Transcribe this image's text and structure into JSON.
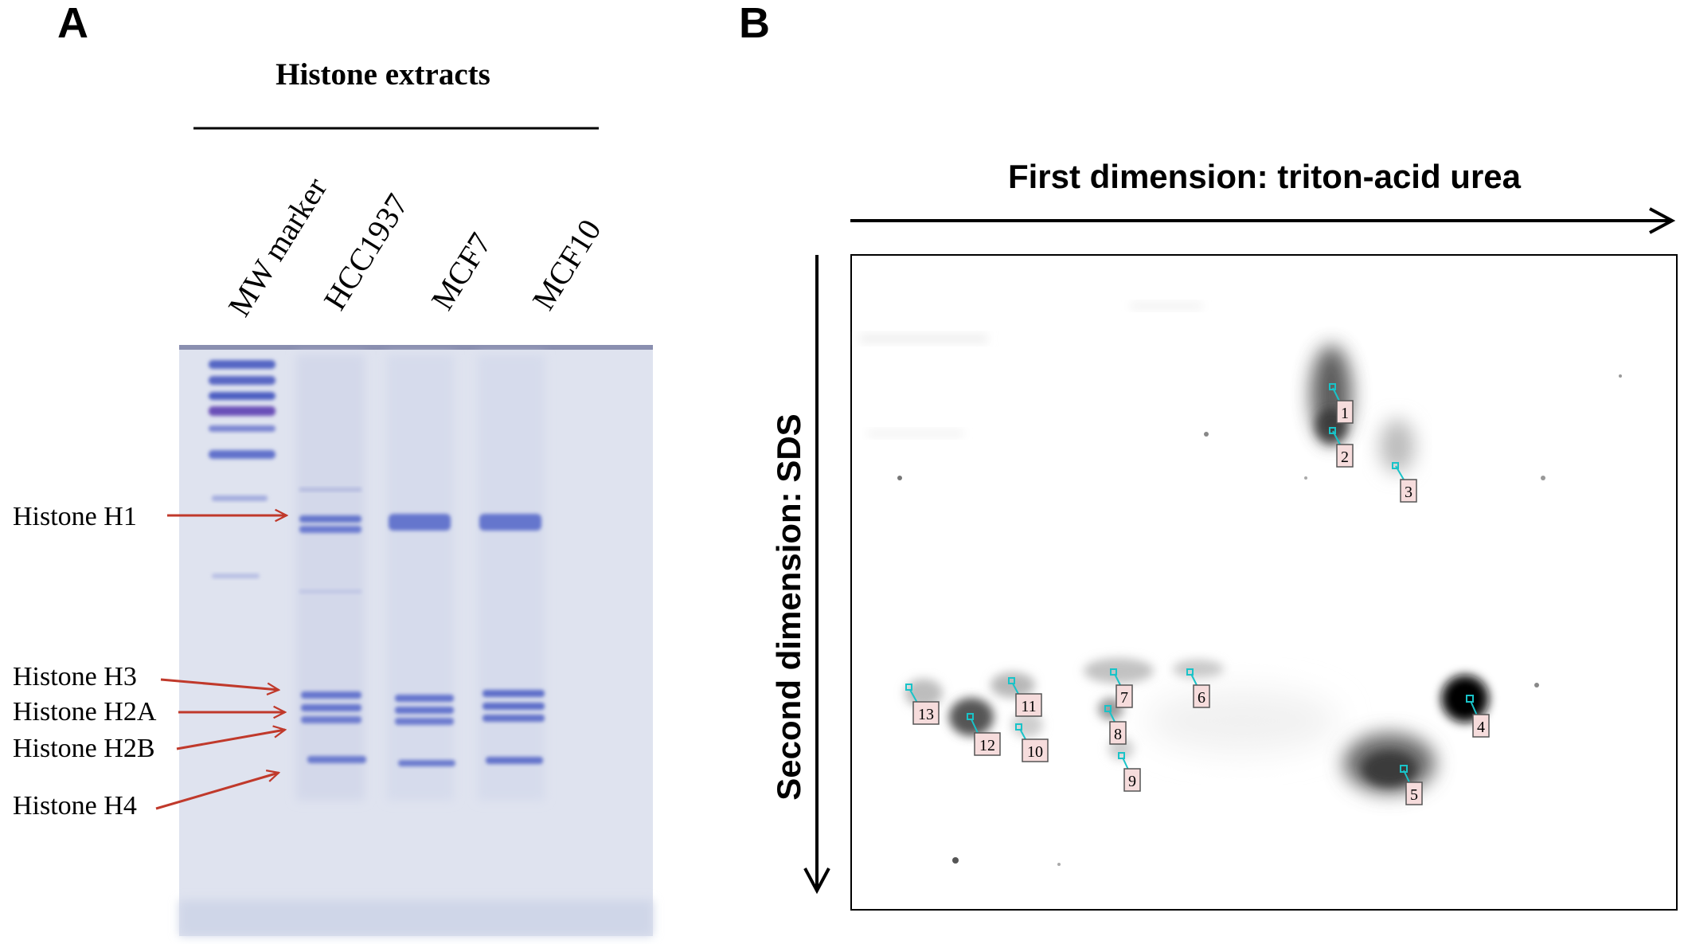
{
  "panel_a": {
    "letter": "A",
    "header": "Histone extracts",
    "lanes": [
      "MW marker",
      "HCC1937",
      "MCF7",
      "MCF10"
    ],
    "bands": [
      {
        "label": "Histone H1"
      },
      {
        "label": "Histone H3"
      },
      {
        "label": "Histone H2A"
      },
      {
        "label": "Histone H2B"
      },
      {
        "label": "Histone H4"
      }
    ],
    "arrow_color": "#c0392b",
    "gel_color": "#dfe3ef",
    "band_color": "#5a6cc8"
  },
  "panel_b": {
    "letter": "B",
    "x_axis_label": "First dimension: triton-acid urea",
    "y_axis_label": "Second dimension: SDS",
    "spots": [
      "1",
      "2",
      "3",
      "4",
      "5",
      "6",
      "7",
      "8",
      "9",
      "10",
      "11",
      "12",
      "13"
    ],
    "marker_color": "#19c3c8",
    "label_fill": "#f6dcdc"
  }
}
